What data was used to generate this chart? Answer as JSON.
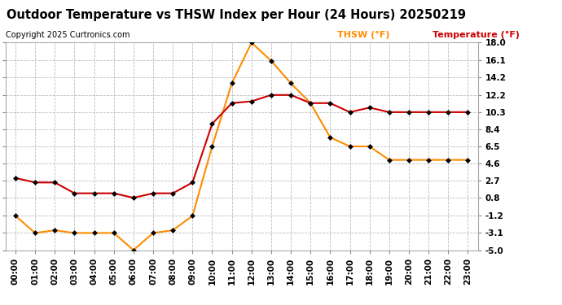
{
  "title": "Outdoor Temperature vs THSW Index per Hour (24 Hours) 20250219",
  "copyright": "Copyright 2025 Curtronics.com",
  "legend_thsw": "THSW (°F)",
  "legend_temp": "Temperature (°F)",
  "hours": [
    0,
    1,
    2,
    3,
    4,
    5,
    6,
    7,
    8,
    9,
    10,
    11,
    12,
    13,
    14,
    15,
    16,
    17,
    18,
    19,
    20,
    21,
    22,
    23
  ],
  "temperature": [
    3.0,
    2.5,
    2.5,
    1.3,
    1.3,
    1.3,
    0.8,
    1.3,
    1.3,
    2.5,
    9.0,
    11.3,
    11.5,
    12.2,
    12.2,
    11.3,
    11.3,
    10.3,
    10.8,
    10.3,
    10.3,
    10.3,
    10.3,
    10.3
  ],
  "thsw": [
    -1.2,
    -3.1,
    -2.8,
    -3.1,
    -3.1,
    -3.1,
    -5.0,
    -3.1,
    -2.8,
    -1.2,
    6.5,
    13.5,
    18.0,
    16.0,
    13.5,
    11.3,
    7.5,
    6.5,
    6.5,
    5.0,
    5.0,
    5.0,
    5.0,
    5.0
  ],
  "ylim_min": -5.0,
  "ylim_max": 18.0,
  "yticks": [
    18.0,
    16.1,
    14.2,
    12.2,
    10.3,
    8.4,
    6.5,
    4.6,
    2.7,
    0.8,
    -1.2,
    -3.1,
    -5.0
  ],
  "temp_color": "#cc0000",
  "thsw_color": "#ff8c00",
  "title_color": "#000000",
  "copyright_color": "#000000",
  "legend_thsw_color": "#ff8c00",
  "legend_temp_color": "#cc0000",
  "background_color": "#ffffff",
  "grid_color": "#bbbbbb",
  "marker": "D",
  "marker_size": 3,
  "linewidth": 1.5,
  "title_fontsize": 10.5,
  "copyright_fontsize": 7,
  "legend_fontsize": 8,
  "tick_fontsize": 7.5
}
